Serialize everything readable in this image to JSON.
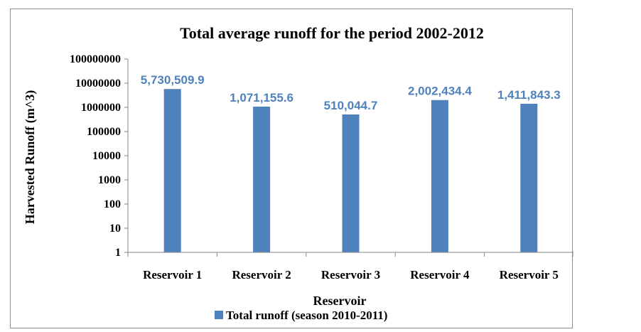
{
  "chart_data": {
    "type": "bar",
    "title": "Total average runoff for the period 2002-2012",
    "xlabel": "Reservoir",
    "ylabel": "Harvested Runoff (m^3)",
    "yscale": "log",
    "ylim": [
      1,
      100000000
    ],
    "yticks": [
      "1",
      "10",
      "100",
      "1000",
      "10000",
      "100000",
      "1000000",
      "10000000",
      "100000000"
    ],
    "categories": [
      "Reservoir  1",
      "Reservoir  2",
      "Reservoir  3",
      "Reservoir  4",
      "Reservoir  5"
    ],
    "series": [
      {
        "name": "Total runoff (season 2010-2011)",
        "color": "#4f81bd",
        "values": [
          5730509.9,
          1071155.6,
          510044.7,
          2002434.4,
          1411843.3
        ],
        "data_labels": [
          "5,730,509.9",
          "1,071,155.6",
          "510,044.7",
          "2,002,434.4",
          "1,411,843.3"
        ]
      }
    ],
    "data_label_color": "#4f81bd",
    "grid": false,
    "legend_position": "bottom"
  }
}
